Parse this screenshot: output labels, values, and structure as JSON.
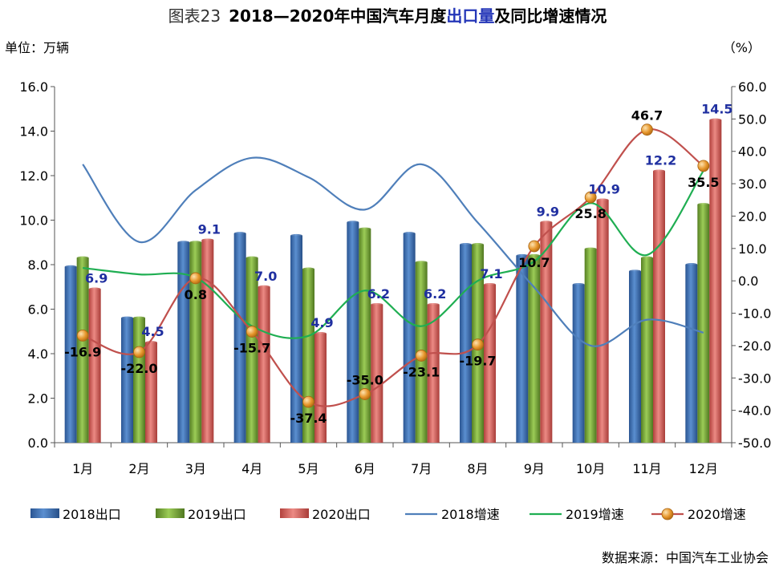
{
  "title": {
    "prefix": "图表23",
    "part1": "2018—2020年中国汽车月度",
    "highlight": "出口量",
    "part2": "及同比增速情况"
  },
  "unit_left": "单位：万辆",
  "unit_right": "（%）",
  "source": "数据来源：中国汽车工业协会",
  "colors": {
    "bar2018": "#3a6fb5",
    "bar2019": "#7daf3a",
    "bar2020": "#d9605a",
    "line2018": "#4f7fba",
    "line2019": "#1fae52",
    "line2020": "#c0504d",
    "marker2020": "#e6962b",
    "label2020": "#1f2fa0"
  },
  "chart_data": {
    "type": "bar",
    "categories": [
      "1月",
      "2月",
      "3月",
      "4月",
      "5月",
      "6月",
      "7月",
      "8月",
      "9月",
      "10月",
      "11月",
      "12月"
    ],
    "ylim": [
      0,
      16
    ],
    "yticks": [
      "0.0",
      "2.0",
      "4.0",
      "6.0",
      "8.0",
      "10.0",
      "12.0",
      "14.0",
      "16.0"
    ],
    "y2lim": [
      -50,
      60
    ],
    "y2ticks": [
      "-50.0",
      "-40.0",
      "-30.0",
      "-20.0",
      "-10.0",
      "0.0",
      "10.0",
      "20.0",
      "30.0",
      "40.0",
      "50.0",
      "60.0"
    ],
    "series": [
      {
        "name": "2018出口",
        "kind": "bar",
        "values": [
          7.9,
          5.6,
          9.0,
          9.4,
          9.3,
          9.9,
          9.4,
          8.9,
          8.4,
          7.1,
          7.7,
          8.0
        ]
      },
      {
        "name": "2019出口",
        "kind": "bar",
        "values": [
          8.3,
          5.6,
          9.0,
          8.3,
          7.8,
          9.6,
          8.1,
          8.9,
          8.4,
          8.7,
          8.3,
          10.7
        ]
      },
      {
        "name": "2020出口",
        "kind": "bar",
        "values": [
          6.9,
          4.5,
          9.1,
          7.0,
          4.9,
          6.2,
          6.2,
          7.1,
          9.9,
          10.9,
          12.2,
          14.5
        ],
        "labels": [
          "6.9",
          "4.5",
          "9.1",
          "7.0",
          "4.9",
          "6.2",
          "6.2",
          "7.1",
          "9.9",
          "10.9",
          "12.2",
          "14.5"
        ]
      },
      {
        "name": "2018增速",
        "kind": "line",
        "values": [
          36,
          12,
          28,
          38,
          32,
          22,
          36,
          18,
          -2,
          -20,
          -12,
          -16
        ]
      },
      {
        "name": "2019增速",
        "kind": "line",
        "values": [
          4,
          2,
          1,
          -14,
          -17,
          -3,
          -14,
          0,
          6,
          24,
          8,
          34
        ]
      },
      {
        "name": "2020增速",
        "kind": "line",
        "values": [
          -16.9,
          -22.0,
          0.8,
          -15.7,
          -37.4,
          -35.0,
          -23.1,
          -19.7,
          10.7,
          25.8,
          46.7,
          35.5
        ],
        "labels": [
          "-16.9",
          "-22.0",
          "0.8",
          "-15.7",
          "-37.4",
          "-35.0",
          "-23.1",
          "-19.7",
          "10.7",
          "25.8",
          "46.7",
          "35.5"
        ]
      }
    ]
  }
}
